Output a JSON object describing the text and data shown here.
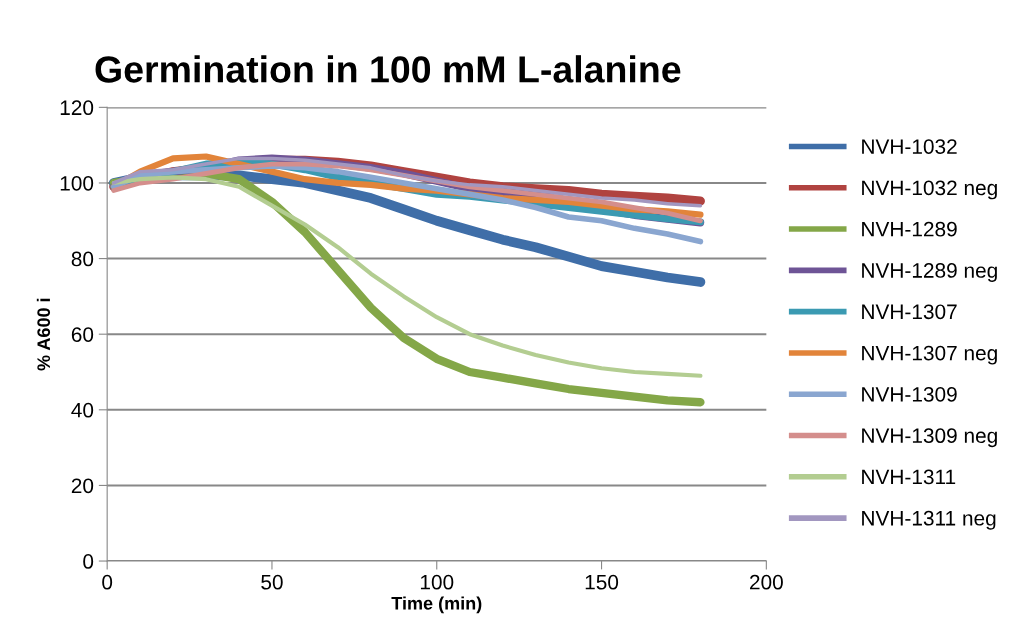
{
  "chart_data": {
    "type": "line",
    "title": "Germination in 100 mM L-alanine",
    "xlabel": "Time (min)",
    "ylabel": "% A600 i",
    "x": [
      2,
      10,
      20,
      30,
      40,
      50,
      60,
      70,
      80,
      90,
      100,
      110,
      120,
      130,
      140,
      150,
      160,
      170,
      180
    ],
    "xlim": [
      0,
      200
    ],
    "xticks": [
      0,
      50,
      100,
      150,
      200
    ],
    "ylim": [
      0,
      120
    ],
    "yticks": [
      0,
      20,
      40,
      60,
      80,
      100,
      120
    ],
    "grid": "y",
    "legend": "right",
    "marker": "none",
    "line_style": "solid",
    "series": [
      {
        "name": "NVH-1032",
        "color": "#3f6ea8",
        "values": [
          100,
          101.5,
          102,
          102,
          102,
          101,
          100,
          98,
          96,
          93,
          90,
          87.5,
          85,
          83,
          80.5,
          78,
          76.5,
          75,
          73.8
        ]
      },
      {
        "name": "NVH-1032 neg",
        "color": "#b04340",
        "values": [
          99,
          101,
          103,
          104,
          105,
          106,
          106,
          105.5,
          104.5,
          103,
          101.5,
          100,
          99,
          98.5,
          98,
          97,
          96.5,
          96,
          95.2
        ]
      },
      {
        "name": "NVH-1289",
        "color": "#84a748",
        "values": [
          100,
          101,
          102,
          102.5,
          101,
          95,
          87,
          77,
          67,
          59,
          53.5,
          50,
          48.5,
          47,
          45.5,
          44.5,
          43.5,
          42.5,
          42
        ]
      },
      {
        "name": "NVH-1289 neg",
        "color": "#6e5496",
        "values": [
          99,
          102,
          103,
          104,
          106,
          106.5,
          106,
          105,
          104,
          102.5,
          100.5,
          98.5,
          97,
          95.5,
          94,
          93,
          91.5,
          90.5,
          89.5
        ]
      },
      {
        "name": "NVH-1307",
        "color": "#3b9ab2",
        "values": [
          99,
          101,
          103,
          105,
          105.5,
          105,
          103.5,
          101.5,
          100,
          98.5,
          97,
          96.5,
          95.5,
          94.5,
          93.5,
          92.5,
          91.5,
          90.5,
          89.7
        ]
      },
      {
        "name": "NVH-1307 neg",
        "color": "#e2843a",
        "values": [
          99,
          103,
          106.5,
          107,
          105,
          103,
          101,
          100,
          99.5,
          98.5,
          98,
          97,
          96,
          95.5,
          95,
          94,
          93,
          92.5,
          91.6
        ]
      },
      {
        "name": "NVH-1309",
        "color": "#8aa6d0",
        "values": [
          99,
          102,
          103,
          103.5,
          104,
          104.5,
          104,
          103,
          101.5,
          100,
          98.5,
          97,
          95.5,
          93.5,
          91,
          90,
          88,
          86.5,
          84.5
        ]
      },
      {
        "name": "NVH-1309 neg",
        "color": "#d48e8c",
        "values": [
          98,
          100,
          101,
          102.5,
          104,
          105,
          105,
          104.5,
          103.5,
          102,
          100.5,
          99,
          98,
          97,
          96,
          95,
          93.5,
          92,
          90
        ]
      },
      {
        "name": "NVH-1311",
        "color": "#b3cd91",
        "values": [
          100,
          101,
          101.5,
          101,
          99,
          94,
          89,
          83,
          76,
          70,
          64.5,
          60,
          57,
          54.5,
          52.5,
          51,
          50,
          49.5,
          49
        ]
      },
      {
        "name": "NVH-1311 neg",
        "color": "#a297c0",
        "values": [
          100,
          103,
          103.5,
          105,
          106.5,
          106.5,
          106,
          105,
          104,
          102,
          100.5,
          99.5,
          99,
          98,
          97,
          96,
          95.5,
          94.5,
          94
        ]
      }
    ]
  }
}
